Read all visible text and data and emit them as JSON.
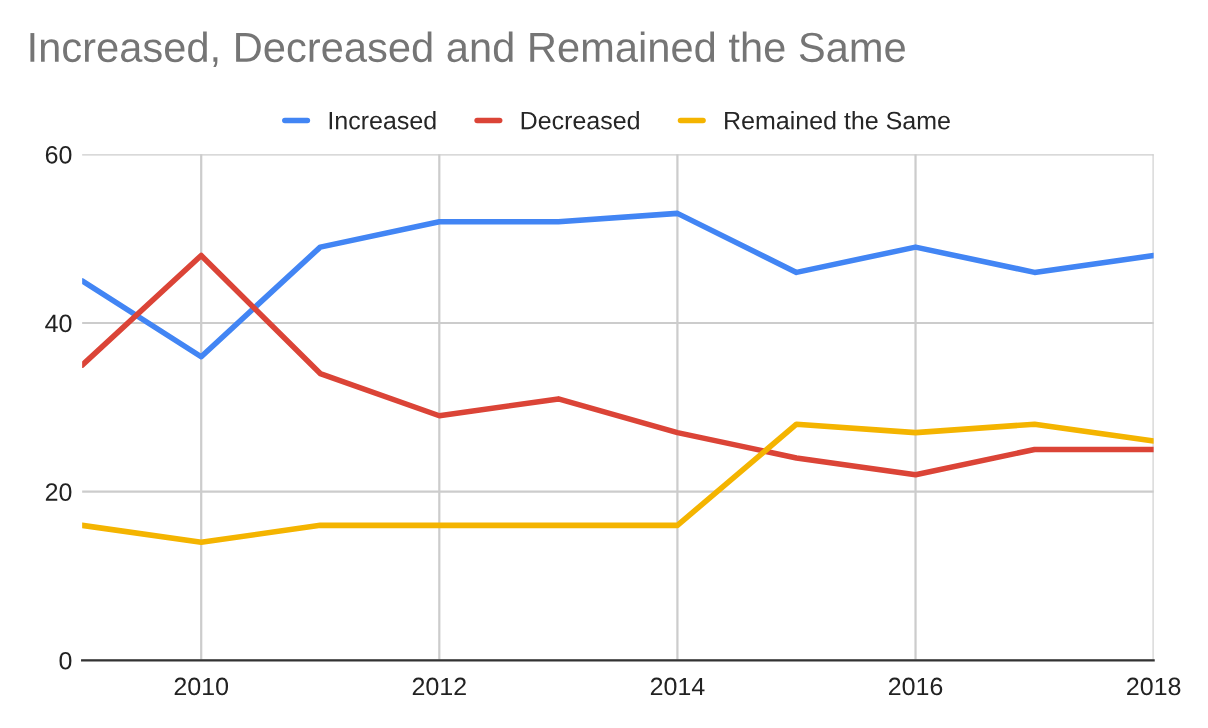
{
  "chart_data": {
    "type": "line",
    "title": "Increased, Decreased and Remained the Same",
    "x": [
      2009,
      2010,
      2011,
      2012,
      2013,
      2014,
      2015,
      2016,
      2017,
      2018
    ],
    "series": [
      {
        "name": "Increased",
        "color": "#4285f4",
        "values": [
          45,
          36,
          49,
          52,
          52,
          53,
          46,
          49,
          46,
          48
        ]
      },
      {
        "name": "Decreased",
        "color": "#db4437",
        "values": [
          35,
          48,
          34,
          29,
          31,
          27,
          24,
          22,
          25,
          25
        ]
      },
      {
        "name": "Remained the Same",
        "color": "#f4b400",
        "values": [
          16,
          14,
          16,
          16,
          16,
          16,
          28,
          27,
          28,
          26
        ]
      }
    ],
    "xlim": [
      2009,
      2018
    ],
    "xticks": [
      2010,
      2012,
      2014,
      2016,
      2018
    ],
    "ylim": [
      0,
      60
    ],
    "yticks": [
      0,
      20,
      40,
      60
    ],
    "grid": true,
    "legend": "top",
    "marker": "none",
    "line_style": "solid"
  }
}
